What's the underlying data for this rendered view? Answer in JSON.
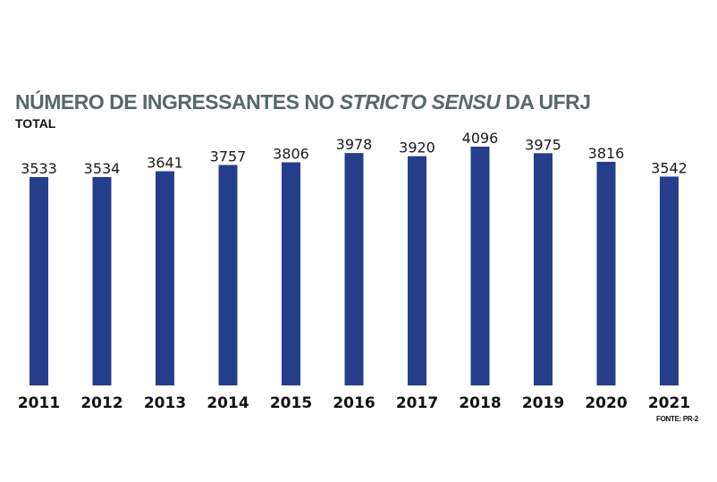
{
  "chart_data": {
    "type": "bar",
    "title_parts": [
      {
        "text": "NÚMERO DE INGRESSANTES NO ",
        "italic": false
      },
      {
        "text": "STRICTO SENSU",
        "italic": true
      },
      {
        "text": " DA UFRJ",
        "italic": false
      }
    ],
    "title": "NÚMERO DE INGRESSANTES NO STRICTO SENSU DA UFRJ",
    "subtitle": "TOTAL",
    "source": "FONTE: PR-2",
    "categories": [
      "2011",
      "2012",
      "2013",
      "2014",
      "2015",
      "2016",
      "2017",
      "2018",
      "2019",
      "2020",
      "2021"
    ],
    "values": [
      3533,
      3534,
      3641,
      3757,
      3806,
      3978,
      3920,
      4096,
      3975,
      3816,
      3542
    ],
    "bar_color": "#253e8c",
    "xlabel": "",
    "ylabel": "",
    "grid": false,
    "legend": "none",
    "data_labels": true
  }
}
